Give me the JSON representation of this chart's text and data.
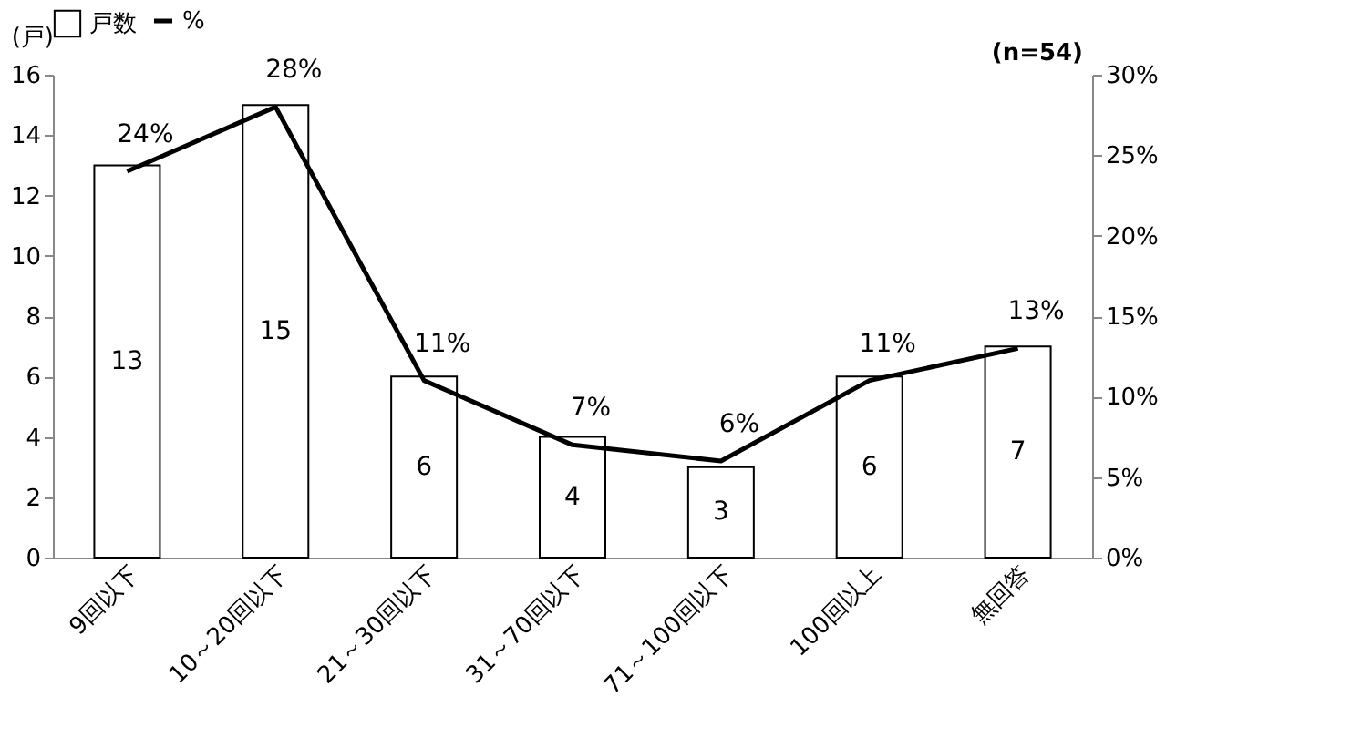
{
  "chart_data": {
    "type": "bar",
    "ylabel": "(戸)",
    "annotations": [
      "(n=54)"
    ],
    "categories": [
      "9回以下",
      "10～20回以下",
      "21～30回以下",
      "31～70回以下",
      "71～100回以下",
      "100回以上",
      "無回答"
    ],
    "series": [
      {
        "name": "戸数",
        "color": "#ffffff",
        "values": [
          13,
          15,
          6,
          4,
          3,
          6,
          7
        ],
        "value_labels": [
          "13",
          "15",
          "6",
          "4",
          "3",
          "6",
          "7"
        ]
      },
      {
        "name": "%",
        "type": "line",
        "axis": "y2",
        "color": "#000000",
        "values": [
          24,
          28,
          11,
          7,
          6,
          11,
          13
        ],
        "value_labels": [
          "24%",
          "28%",
          "11%",
          "7%",
          "6%",
          "11%",
          "13%"
        ]
      }
    ],
    "ylim": [
      0,
      16
    ],
    "yticks": [
      0,
      2,
      4,
      6,
      8,
      10,
      12,
      14,
      16
    ],
    "y2lim": [
      0,
      30
    ],
    "y2ticks": [
      {
        "value": 0,
        "label": "0%"
      },
      {
        "value": 5,
        "label": "5%"
      },
      {
        "value": 10,
        "label": "10%"
      },
      {
        "value": 15,
        "label": "15%"
      },
      {
        "value": 20,
        "label": "20%"
      },
      {
        "value": 25,
        "label": "25%"
      },
      {
        "value": 30,
        "label": "30%"
      }
    ],
    "legend": "top",
    "grid": false,
    "marker": "none",
    "line_style": "solid"
  }
}
